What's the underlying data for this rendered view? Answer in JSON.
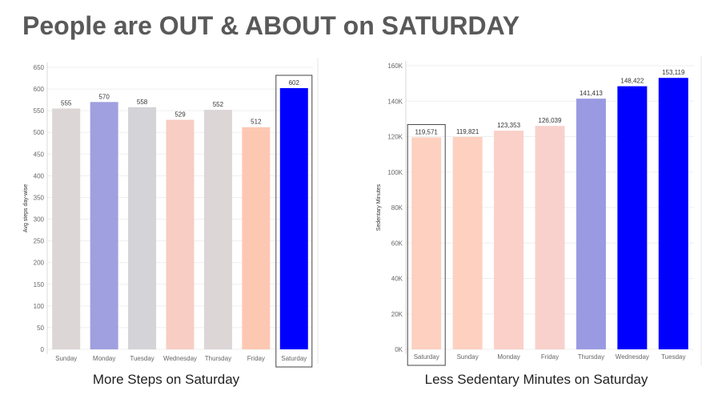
{
  "slide": {
    "title": "People are OUT & ABOUT on SATURDAY",
    "left_caption": "More Steps on Saturday",
    "right_caption": "Less Sedentary Minutes on Saturday"
  },
  "chart_data": [
    {
      "type": "bar",
      "ylabel": "Avg steps day-wise",
      "ylim": [
        0,
        650
      ],
      "yticks": [
        0,
        50,
        100,
        150,
        200,
        250,
        300,
        350,
        400,
        450,
        500,
        550,
        600,
        650
      ],
      "ytick_labels": [
        "0",
        "50",
        "100",
        "150",
        "200",
        "250",
        "300",
        "350",
        "400",
        "450",
        "500",
        "550",
        "600",
        "650"
      ],
      "categories": [
        "Sunday",
        "Monday",
        "Tuesday",
        "Wednesday",
        "Thursday",
        "Friday",
        "Saturday"
      ],
      "values": [
        555,
        570,
        558,
        529,
        552,
        512,
        602
      ],
      "value_labels": [
        "555",
        "570",
        "558",
        "529",
        "552",
        "512",
        "602"
      ],
      "colors": [
        "#dcd6d6",
        "#a0a0e0",
        "#d3d3d8",
        "#f7cdc4",
        "#ddd6d6",
        "#fdc8b2",
        "#0000ff"
      ],
      "highlight": "Saturday",
      "grid": true
    },
    {
      "type": "bar",
      "ylabel": "Sedentary Minutes",
      "ylim": [
        0,
        160000
      ],
      "yticks": [
        0,
        20000,
        40000,
        60000,
        80000,
        100000,
        120000,
        140000,
        160000
      ],
      "ytick_labels": [
        "0K",
        "20K",
        "40K",
        "60K",
        "80K",
        "100K",
        "120K",
        "140K",
        "160K"
      ],
      "categories": [
        "Saturday",
        "Sunday",
        "Monday",
        "Friday",
        "Thursday",
        "Wednesday",
        "Tuesday"
      ],
      "values": [
        119571,
        119821,
        123353,
        126039,
        141413,
        148422,
        153119
      ],
      "value_labels": [
        "119,571",
        "119,821",
        "123,353",
        "126,039",
        "141,413",
        "148,422",
        "153,119"
      ],
      "colors": [
        "#fdd0c0",
        "#fdd0c0",
        "#fbd0c8",
        "#f8d1cc",
        "#9a9ae2",
        "#0000ff",
        "#0000ff"
      ],
      "highlight": "Saturday",
      "grid": true
    }
  ]
}
